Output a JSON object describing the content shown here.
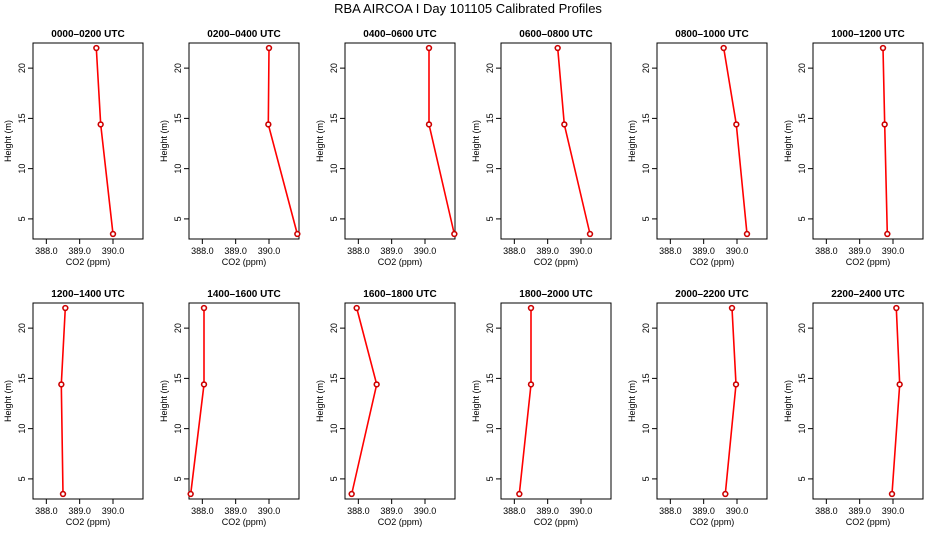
{
  "figure": {
    "title": "RBA AIRCOA I  Day 101105  Calibrated Profiles",
    "colors": {
      "line": "#ff0000",
      "marker": "#cc0000",
      "axis": "#000000"
    }
  },
  "chart_data": [
    {
      "type": "line",
      "title": "0000–0200 UTC",
      "xlabel": "CO2 (ppm)",
      "ylabel": "Height (m)",
      "xlim": [
        387.6,
        390.9
      ],
      "ylim": [
        3,
        22.5
      ],
      "xticks": [
        "388.0",
        "389.0",
        "390.0"
      ],
      "yticks": [
        "5",
        "10",
        "15",
        "20"
      ],
      "x": [
        389.5,
        389.63,
        390.0
      ],
      "y": [
        22,
        14.4,
        3.5
      ]
    },
    {
      "type": "line",
      "title": "0200–0400 UTC",
      "xlabel": "CO2 (ppm)",
      "ylabel": "Height (m)",
      "xlim": [
        387.6,
        390.9
      ],
      "ylim": [
        3,
        22.5
      ],
      "xticks": [
        "388.0",
        "389.0",
        "390.0"
      ],
      "yticks": [
        "5",
        "10",
        "15",
        "20"
      ],
      "x": [
        390.0,
        389.98,
        390.85
      ],
      "y": [
        22,
        14.4,
        3.5
      ]
    },
    {
      "type": "line",
      "title": "0400–0600 UTC",
      "xlabel": "CO2 (ppm)",
      "ylabel": "Height (m)",
      "xlim": [
        387.6,
        390.9
      ],
      "ylim": [
        3,
        22.5
      ],
      "xticks": [
        "388.0",
        "389.0",
        "390.0"
      ],
      "yticks": [
        "5",
        "10",
        "15",
        "20"
      ],
      "x": [
        390.12,
        390.12,
        390.88
      ],
      "y": [
        22,
        14.4,
        3.5
      ]
    },
    {
      "type": "line",
      "title": "0600–0800 UTC",
      "xlabel": "CO2 (ppm)",
      "ylabel": "Height (m)",
      "xlim": [
        387.6,
        390.9
      ],
      "ylim": [
        3,
        22.5
      ],
      "xticks": [
        "388.0",
        "389.0",
        "390.0"
      ],
      "yticks": [
        "5",
        "10",
        "15",
        "20"
      ],
      "x": [
        389.3,
        389.5,
        390.27
      ],
      "y": [
        22,
        14.4,
        3.5
      ]
    },
    {
      "type": "line",
      "title": "0800–1000 UTC",
      "xlabel": "CO2 (ppm)",
      "ylabel": "Height (m)",
      "xlim": [
        387.6,
        390.9
      ],
      "ylim": [
        3,
        22.5
      ],
      "xticks": [
        "388.0",
        "389.0",
        "390.0"
      ],
      "yticks": [
        "5",
        "10",
        "15",
        "20"
      ],
      "x": [
        389.6,
        389.98,
        390.3
      ],
      "y": [
        22,
        14.4,
        3.5
      ]
    },
    {
      "type": "line",
      "title": "1000–1200 UTC",
      "xlabel": "CO2 (ppm)",
      "ylabel": "Height (m)",
      "xlim": [
        387.6,
        390.9
      ],
      "ylim": [
        3,
        22.5
      ],
      "xticks": [
        "388.0",
        "389.0",
        "390.0"
      ],
      "yticks": [
        "5",
        "10",
        "15",
        "20"
      ],
      "x": [
        389.7,
        389.75,
        389.83
      ],
      "y": [
        22,
        14.4,
        3.5
      ]
    },
    {
      "type": "line",
      "title": "1200–1400 UTC",
      "xlabel": "CO2 (ppm)",
      "ylabel": "Height (m)",
      "xlim": [
        387.6,
        390.9
      ],
      "ylim": [
        3,
        22.5
      ],
      "xticks": [
        "388.0",
        "389.0",
        "390.0"
      ],
      "yticks": [
        "5",
        "10",
        "15",
        "20"
      ],
      "x": [
        388.57,
        388.45,
        388.5
      ],
      "y": [
        22,
        14.4,
        3.5
      ]
    },
    {
      "type": "line",
      "title": "1400–1600 UTC",
      "xlabel": "CO2 (ppm)",
      "ylabel": "Height (m)",
      "xlim": [
        387.6,
        390.9
      ],
      "ylim": [
        3,
        22.5
      ],
      "xticks": [
        "388.0",
        "389.0",
        "390.0"
      ],
      "yticks": [
        "5",
        "10",
        "15",
        "20"
      ],
      "x": [
        388.05,
        388.05,
        387.65
      ],
      "y": [
        22,
        14.4,
        3.5
      ]
    },
    {
      "type": "line",
      "title": "1600–1800 UTC",
      "xlabel": "CO2 (ppm)",
      "ylabel": "Height (m)",
      "xlim": [
        387.6,
        390.9
      ],
      "ylim": [
        3,
        22.5
      ],
      "xticks": [
        "388.0",
        "389.0",
        "390.0"
      ],
      "yticks": [
        "5",
        "10",
        "15",
        "20"
      ],
      "x": [
        387.95,
        388.55,
        387.8
      ],
      "y": [
        22,
        14.4,
        3.5
      ]
    },
    {
      "type": "line",
      "title": "1800–2000 UTC",
      "xlabel": "CO2 (ppm)",
      "ylabel": "Height (m)",
      "xlim": [
        387.6,
        390.9
      ],
      "ylim": [
        3,
        22.5
      ],
      "xticks": [
        "388.0",
        "389.0",
        "390.0"
      ],
      "yticks": [
        "5",
        "10",
        "15",
        "20"
      ],
      "x": [
        388.5,
        388.5,
        388.15
      ],
      "y": [
        22,
        14.4,
        3.5
      ]
    },
    {
      "type": "line",
      "title": "2000–2200 UTC",
      "xlabel": "CO2 (ppm)",
      "ylabel": "Height (m)",
      "xlim": [
        387.6,
        390.9
      ],
      "ylim": [
        3,
        22.5
      ],
      "xticks": [
        "388.0",
        "389.0",
        "390.0"
      ],
      "yticks": [
        "5",
        "10",
        "15",
        "20"
      ],
      "x": [
        389.85,
        389.97,
        389.65
      ],
      "y": [
        22,
        14.4,
        3.5
      ]
    },
    {
      "type": "line",
      "title": "2200–2400 UTC",
      "xlabel": "CO2 (ppm)",
      "ylabel": "Height (m)",
      "xlim": [
        387.6,
        390.9
      ],
      "ylim": [
        3,
        22.5
      ],
      "xticks": [
        "388.0",
        "389.0",
        "390.0"
      ],
      "yticks": [
        "5",
        "10",
        "15",
        "20"
      ],
      "x": [
        390.1,
        390.2,
        389.97
      ],
      "y": [
        22,
        14.4,
        3.5
      ]
    }
  ]
}
